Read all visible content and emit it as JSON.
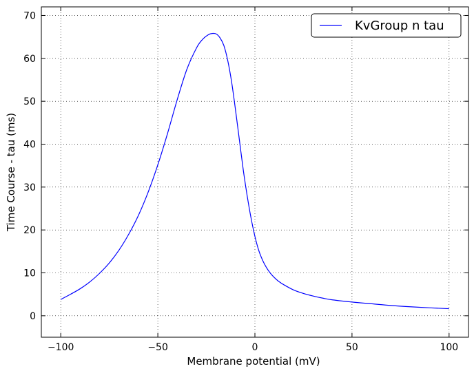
{
  "chart_data": {
    "type": "line",
    "xlabel": "Membrane potential (mV)",
    "ylabel": "Time Course - tau (ms)",
    "xlim": [
      -110,
      110
    ],
    "ylim": [
      -5,
      72
    ],
    "x_ticks": [
      -100,
      -50,
      0,
      50,
      100
    ],
    "x_tick_labels": [
      "−100",
      "−50",
      "0",
      "50",
      "100"
    ],
    "y_ticks": [
      0,
      10,
      20,
      30,
      40,
      50,
      60,
      70
    ],
    "y_tick_labels": [
      "0",
      "10",
      "20",
      "30",
      "40",
      "50",
      "60",
      "70"
    ],
    "grid": true,
    "grid_style": "dotted",
    "legend_position": "top-right",
    "series": [
      {
        "name": "KvGroup n tau",
        "color": "#0000ff",
        "x": [
          -100,
          -95,
          -90,
          -85,
          -80,
          -75,
          -70,
          -65,
          -60,
          -55,
          -50,
          -45,
          -40,
          -35,
          -30,
          -27,
          -24,
          -22,
          -20,
          -18,
          -16,
          -14,
          -12,
          -10,
          -8,
          -6,
          -4,
          -2,
          0,
          2,
          4,
          6,
          8,
          10,
          12,
          15,
          20,
          25,
          30,
          35,
          40,
          50,
          60,
          70,
          80,
          90,
          100
        ],
        "y": [
          3.8,
          5.0,
          6.3,
          7.9,
          9.9,
          12.3,
          15.3,
          19.0,
          23.4,
          28.8,
          35.2,
          42.5,
          50.4,
          57.5,
          62.5,
          64.4,
          65.5,
          65.8,
          65.7,
          64.8,
          63.0,
          59.5,
          54.5,
          48.0,
          41.0,
          34.0,
          28.0,
          22.8,
          18.5,
          15.2,
          12.9,
          11.2,
          9.9,
          8.9,
          8.1,
          7.2,
          6.0,
          5.2,
          4.6,
          4.1,
          3.7,
          3.2,
          2.8,
          2.4,
          2.1,
          1.85,
          1.65
        ]
      }
    ]
  }
}
